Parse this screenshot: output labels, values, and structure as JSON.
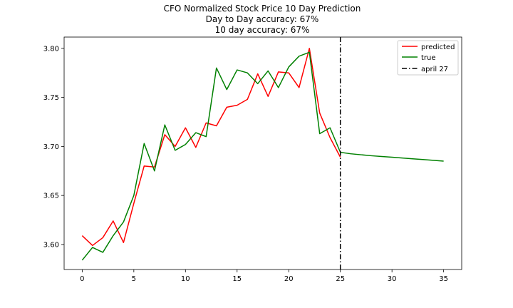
{
  "chart_data": {
    "type": "line",
    "title_lines": [
      "CFO Normalized Stock Price 10 Day Prediction",
      "Day to Day accuracy: 67%",
      "10 day accuracy: 67%"
    ],
    "xlim": [
      -1.75,
      36.75
    ],
    "ylim": [
      3.5745,
      3.8115
    ],
    "x_ticks": [
      0,
      5,
      10,
      15,
      20,
      25,
      30,
      35
    ],
    "y_ticks": [
      3.6,
      3.65,
      3.7,
      3.75,
      3.8
    ],
    "y_tick_labels": [
      "3.60",
      "3.65",
      "3.70",
      "3.75",
      "3.80"
    ],
    "legend_position": "top-right",
    "series": [
      {
        "name": "predicted",
        "color": "#ff0000",
        "x": [
          0,
          1,
          2,
          3,
          4,
          5,
          6,
          7,
          8,
          9,
          10,
          11,
          12,
          13,
          14,
          15,
          16,
          17,
          18,
          19,
          20,
          21,
          22,
          23,
          24,
          25
        ],
        "values": [
          3.609,
          3.599,
          3.607,
          3.624,
          3.602,
          3.642,
          3.68,
          3.679,
          3.712,
          3.7,
          3.719,
          3.699,
          3.724,
          3.721,
          3.74,
          3.742,
          3.748,
          3.774,
          3.751,
          3.776,
          3.775,
          3.76,
          3.8,
          3.734,
          3.709,
          3.689
        ]
      },
      {
        "name": "true",
        "color": "#008000",
        "x": [
          0,
          1,
          2,
          3,
          4,
          5,
          6,
          7,
          8,
          9,
          10,
          11,
          12,
          13,
          14,
          15,
          16,
          17,
          18,
          19,
          20,
          21,
          22,
          23,
          24,
          25,
          26,
          27,
          28,
          29,
          30,
          31,
          32,
          33,
          34,
          35
        ],
        "values": [
          3.584,
          3.597,
          3.592,
          3.609,
          3.623,
          3.65,
          3.703,
          3.675,
          3.722,
          3.696,
          3.702,
          3.714,
          3.71,
          3.78,
          3.758,
          3.778,
          3.775,
          3.764,
          3.777,
          3.76,
          3.781,
          3.792,
          3.796,
          3.713,
          3.719,
          3.694,
          3.6925,
          3.6915,
          3.6905,
          3.6897,
          3.689,
          3.6882,
          3.6874,
          3.6866,
          3.6858,
          3.685
        ]
      }
    ],
    "vline": {
      "name": "april 27",
      "x": 25,
      "color": "#000000",
      "style": "dashdot"
    }
  }
}
